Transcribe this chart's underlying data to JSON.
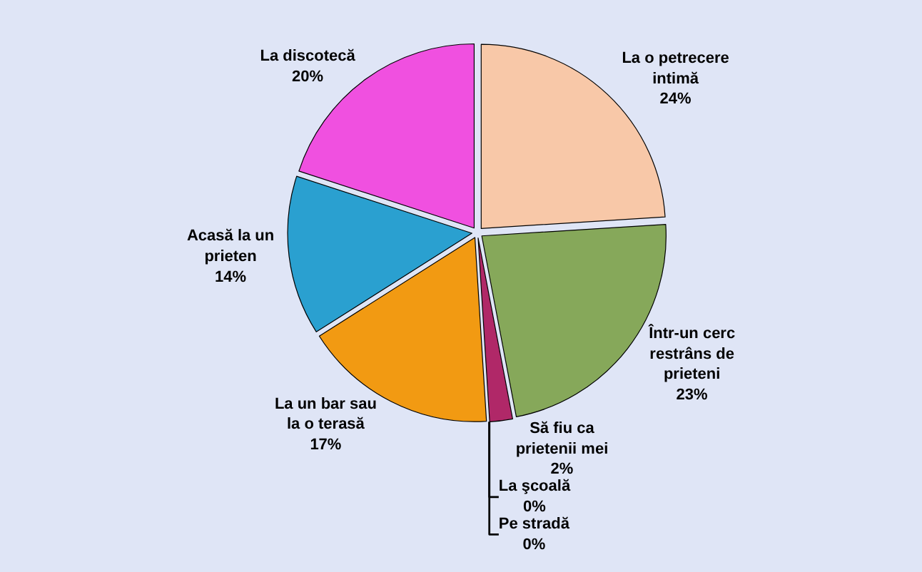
{
  "chart_data": {
    "type": "pie",
    "categories": [
      "La o petrecere intimă",
      "Într-un cerc restrâns de prieteni",
      "Să fiu ca prietenii mei",
      "La şcoală",
      "Pe stradă",
      "La un bar sau la o terasă",
      "Acasă la un prieten",
      "La discotecă"
    ],
    "values": [
      24,
      23,
      2,
      0,
      0,
      17,
      14,
      20
    ],
    "value_labels": [
      "24%",
      "23%",
      "2%",
      "0%",
      "0%",
      "17%",
      "14%",
      "20%"
    ],
    "colors": [
      "#f8c8a8",
      "#86a85a",
      "#b02868",
      "#a0c8e8",
      "#808080",
      "#f29a12",
      "#2aa0d0",
      "#f050e0"
    ]
  }
}
